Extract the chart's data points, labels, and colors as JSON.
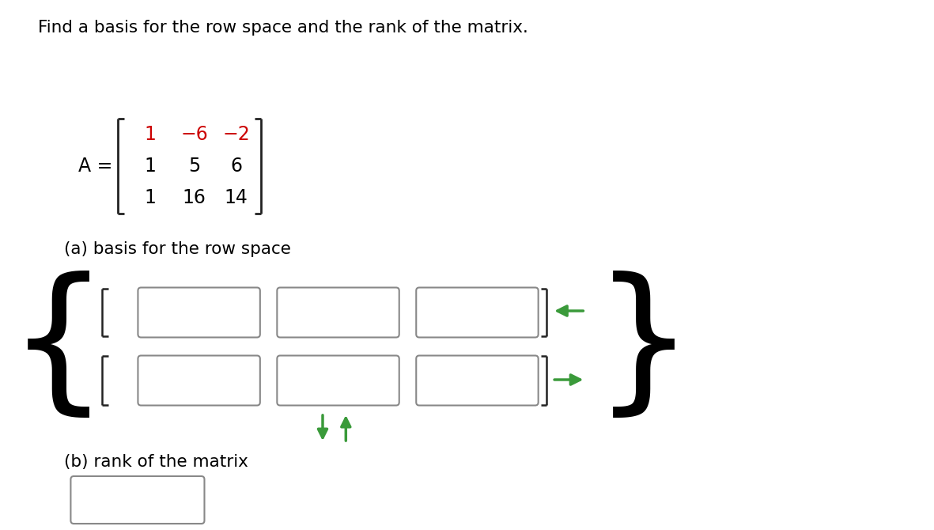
{
  "title": "Find a basis for the row space and the rank of the matrix.",
  "matrix_label": "A =",
  "matrix_rows": [
    [
      "1",
      "−6",
      "−2"
    ],
    [
      "1",
      "5",
      "6"
    ],
    [
      "1",
      "16",
      "14"
    ]
  ],
  "row1_color": "#cc0000",
  "row2_color": "#000000",
  "row3_color": "#000000",
  "part_a_label": "(a) basis for the row space",
  "part_b_label": "(b) rank of the matrix",
  "bg_color": "#ffffff",
  "text_color": "#000000",
  "green_color": "#3a9a3a",
  "bracket_color": "#222222",
  "box_edge_color": "#888888",
  "figsize": [
    11.81,
    6.7
  ],
  "dpi": 100
}
